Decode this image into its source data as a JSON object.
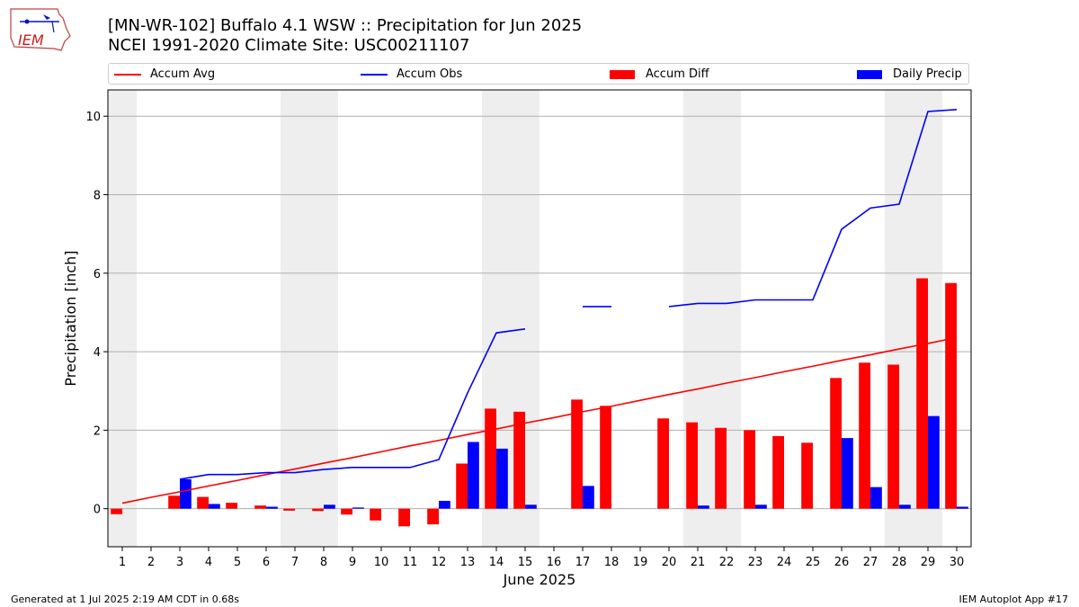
{
  "header": {
    "title_line1": "[MN-WR-102] Buffalo 4.1 WSW :: Precipitation for Jun 2025",
    "title_line2": "NCEI 1991-2020 Climate Site: USC00211107",
    "logo_text": "IEM"
  },
  "footer": {
    "left": "Generated at 1 Jul 2025 2:19 AM CDT in 0.68s",
    "right": "IEM Autoplot App #17"
  },
  "colors": {
    "avg": "#ff0000",
    "obs": "#0000ff",
    "diff": "#ff0000",
    "daily": "#0000ff",
    "weekend_shade": "#eeeeee",
    "grid": "#b0b0b0"
  },
  "chart_data": {
    "type": "bar",
    "xlabel": "June 2025",
    "ylabel": "Precipitation [inch]",
    "xlim": [
      0.5,
      30.5
    ],
    "ylim": [
      -0.97,
      10.67
    ],
    "yticks": [
      0,
      2,
      4,
      6,
      8,
      10
    ],
    "grid": true,
    "legend_position": "top",
    "categories": [
      "1",
      "2",
      "3",
      "4",
      "5",
      "6",
      "7",
      "8",
      "9",
      "10",
      "11",
      "12",
      "13",
      "14",
      "15",
      "16",
      "17",
      "18",
      "19",
      "20",
      "21",
      "22",
      "23",
      "24",
      "25",
      "26",
      "27",
      "28",
      "29",
      "30"
    ],
    "weekend_shaded_days": [
      1,
      7,
      8,
      14,
      15,
      21,
      22,
      28,
      29
    ],
    "series": [
      {
        "name": "Accum Avg",
        "kind": "line",
        "values": [
          0.14,
          0.29,
          0.43,
          0.58,
          0.72,
          0.87,
          1.01,
          1.16,
          1.3,
          1.45,
          1.6,
          1.74,
          1.89,
          2.03,
          2.18,
          2.32,
          2.47,
          2.61,
          2.76,
          2.91,
          3.05,
          3.2,
          3.34,
          3.49,
          3.63,
          3.78,
          3.92,
          4.07,
          4.21,
          4.36
        ]
      },
      {
        "name": "Accum Obs",
        "kind": "line",
        "values": [
          null,
          null,
          0.75,
          0.87,
          0.87,
          0.92,
          0.92,
          1.0,
          1.05,
          1.05,
          1.05,
          1.25,
          2.95,
          4.48,
          4.58,
          null,
          5.15,
          5.15,
          null,
          5.15,
          5.23,
          5.23,
          5.32,
          5.32,
          5.32,
          7.12,
          7.66,
          7.76,
          10.12,
          10.17
        ]
      },
      {
        "name": "Accum Diff",
        "kind": "bar",
        "values": [
          -0.14,
          null,
          0.33,
          0.3,
          0.15,
          0.08,
          -0.05,
          -0.06,
          -0.15,
          -0.3,
          -0.45,
          -0.4,
          1.15,
          2.55,
          2.47,
          null,
          2.78,
          2.62,
          null,
          2.3,
          2.2,
          2.06,
          2.0,
          1.85,
          1.68,
          3.33,
          3.72,
          3.67,
          5.87,
          5.75
        ]
      },
      {
        "name": "Daily Precip",
        "kind": "bar",
        "values": [
          null,
          null,
          0.75,
          0.12,
          null,
          0.05,
          null,
          0.1,
          0.03,
          null,
          null,
          0.2,
          1.7,
          1.53,
          0.1,
          null,
          0.58,
          null,
          null,
          null,
          0.08,
          null,
          0.1,
          null,
          null,
          1.8,
          0.55,
          0.1,
          2.36,
          0.05
        ]
      }
    ]
  }
}
